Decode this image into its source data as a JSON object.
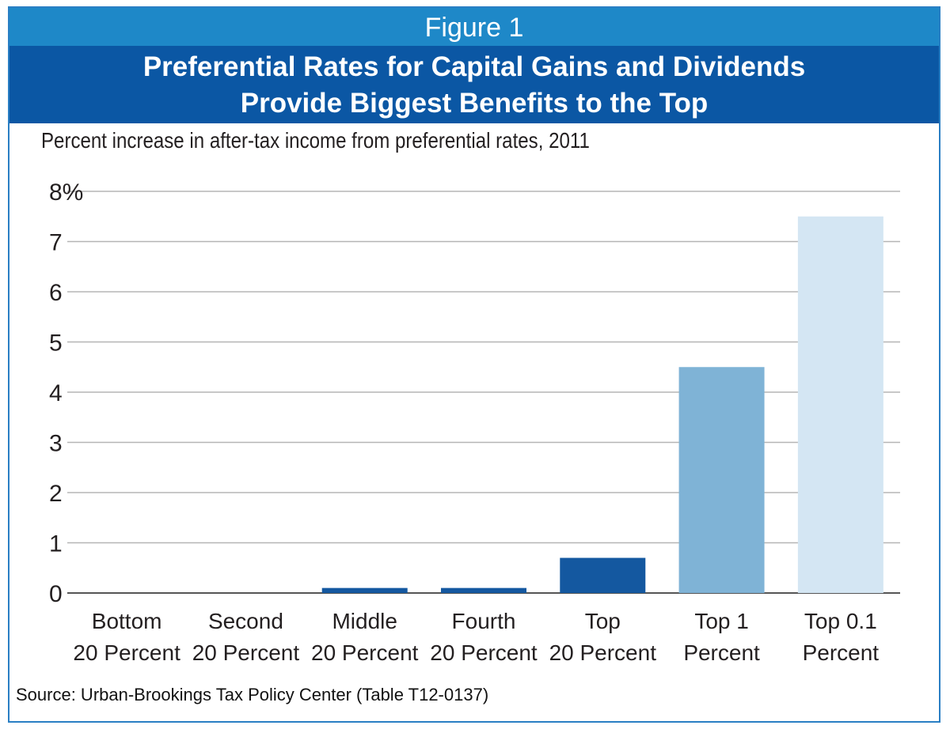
{
  "figure_label": "Figure 1",
  "title_lines": [
    "Preferential Rates for Capital Gains and Dividends",
    "Provide Biggest Benefits to the Top"
  ],
  "source": "Source: Urban-Brookings Tax Policy Center (Table T12-0137)",
  "chart_data": {
    "type": "bar",
    "title": "Percent increase in after-tax income from preferential rates, 2011",
    "categories": [
      [
        "Bottom",
        "20 Percent"
      ],
      [
        "Second",
        "20 Percent"
      ],
      [
        "Middle",
        "20 Percent"
      ],
      [
        "Fourth",
        "20 Percent"
      ],
      [
        "Top",
        "20 Percent"
      ],
      [
        "Top 1",
        "Percent"
      ],
      [
        "Top 0.1",
        "Percent"
      ]
    ],
    "values": [
      0.0,
      0.0,
      0.1,
      0.1,
      0.7,
      4.5,
      7.5
    ],
    "ylim": [
      0,
      8
    ],
    "yticks": [
      "0",
      "1",
      "2",
      "3",
      "4",
      "5",
      "6",
      "7",
      "8%"
    ],
    "grid": true,
    "colors": {
      "bar": [
        "#1458a0",
        "#1458a0",
        "#1458a0",
        "#1458a0",
        "#1458a0",
        "#7fb3d6",
        "#d4e6f3"
      ],
      "grid": "#b5b5b5",
      "axis": "#555555",
      "figure_band": "#1e88c8",
      "title_band": "#0b57a4",
      "border": "#2a7fc4"
    }
  }
}
